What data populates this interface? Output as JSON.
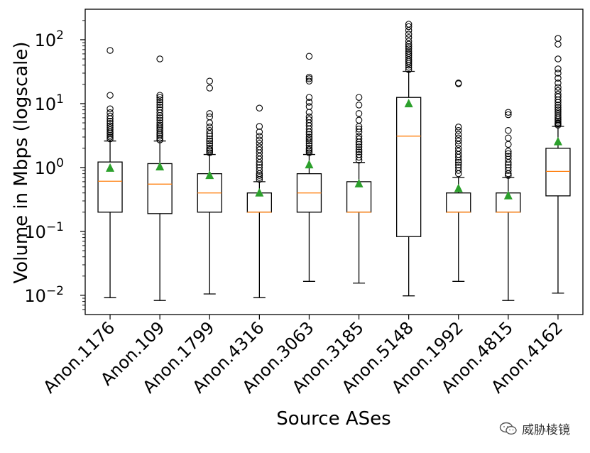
{
  "chart_data": {
    "type": "boxplot",
    "title": "",
    "xlabel": "Source ASes",
    "ylabel": "Volume in Mbps (logscale)",
    "yscale": "log",
    "ylim": [
      0.005,
      300
    ],
    "yticks": [
      {
        "value": 0.01,
        "base": "10",
        "exp": "−2"
      },
      {
        "value": 0.1,
        "base": "10",
        "exp": "−1"
      },
      {
        "value": 1,
        "base": "10",
        "exp": "0"
      },
      {
        "value": 10,
        "base": "10",
        "exp": "1"
      },
      {
        "value": 100,
        "base": "10",
        "exp": "2"
      }
    ],
    "grid": false,
    "colors": {
      "box": "#000000",
      "median": "#ff7f0e",
      "mean": "#2ca02c",
      "flier": "#000000"
    },
    "categories": [
      "Anon.1176",
      "Anon.109",
      "Anon.1799",
      "Anon.4316",
      "Anon.3063",
      "Anon.3185",
      "Anon.5148",
      "Anon.1992",
      "Anon.4815",
      "Anon.4162"
    ],
    "boxes": [
      {
        "whislo": 0.0092,
        "q1": 0.2,
        "med": 0.61,
        "q3": 1.22,
        "whishi": 2.6,
        "mean": 1.0,
        "fliers": [
          2.8,
          3.0,
          3.2,
          3.4,
          3.6,
          3.9,
          4.2,
          4.5,
          4.9,
          5.3,
          5.8,
          6.4,
          7.2,
          8.3,
          13.5,
          68
        ]
      },
      {
        "whislo": 0.0083,
        "q1": 0.19,
        "med": 0.55,
        "q3": 1.15,
        "whishi": 2.6,
        "mean": 1.05,
        "fliers": [
          2.7,
          2.9,
          3.1,
          3.3,
          3.5,
          3.8,
          4.0,
          4.3,
          4.6,
          5.0,
          5.5,
          6.0,
          6.5,
          7.2,
          8.0,
          8.8,
          9.6,
          10.5,
          11.5,
          12.5,
          13.5,
          50
        ]
      },
      {
        "whislo": 0.0105,
        "q1": 0.2,
        "med": 0.4,
        "q3": 0.8,
        "whishi": 1.6,
        "mean": 0.77,
        "fliers": [
          1.7,
          1.8,
          1.9,
          2.0,
          2.2,
          2.4,
          2.6,
          2.8,
          3.1,
          3.4,
          3.8,
          4.3,
          5.0,
          6.2,
          7.0,
          17.5,
          22.5
        ]
      },
      {
        "whislo": 0.0092,
        "q1": 0.2,
        "med": 0.2,
        "q3": 0.4,
        "whishi": 0.6,
        "mean": 0.41,
        "fliers": [
          0.65,
          0.7,
          0.75,
          0.8,
          0.9,
          1.0,
          1.1,
          1.2,
          1.35,
          1.5,
          1.7,
          1.9,
          2.1,
          2.4,
          2.7,
          3.1,
          3.6,
          4.4,
          8.5
        ]
      },
      {
        "whislo": 0.0165,
        "q1": 0.2,
        "med": 0.4,
        "q3": 0.8,
        "whishi": 1.6,
        "mean": 1.13,
        "fliers": [
          1.7,
          1.8,
          1.9,
          2.0,
          2.2,
          2.4,
          2.6,
          2.8,
          3.0,
          3.3,
          3.6,
          4.0,
          4.5,
          5.0,
          5.6,
          6.2,
          7.3,
          9.0,
          10.5,
          12.5,
          22.5,
          24.5,
          26,
          55
        ]
      },
      {
        "whislo": 0.0155,
        "q1": 0.2,
        "med": 0.2,
        "q3": 0.6,
        "whishi": 1.2,
        "mean": 0.57,
        "fliers": [
          1.3,
          1.45,
          1.6,
          1.75,
          1.9,
          2.1,
          2.3,
          2.5,
          2.8,
          3.1,
          3.6,
          4.0,
          4.4,
          5.5,
          7.0,
          9.5,
          12.5
        ]
      },
      {
        "whislo": 0.0098,
        "q1": 0.083,
        "med": 3.1,
        "q3": 12.5,
        "whishi": 32,
        "mean": 10.2,
        "fliers": [
          34,
          37,
          40,
          43,
          46,
          49,
          53,
          57,
          61,
          66,
          72,
          78,
          85,
          95,
          108,
          122,
          140,
          160,
          175
        ]
      },
      {
        "whislo": 0.0165,
        "q1": 0.2,
        "med": 0.2,
        "q3": 0.4,
        "whishi": 0.7,
        "mean": 0.48,
        "fliers": [
          0.8,
          0.9,
          1.0,
          1.1,
          1.2,
          1.3,
          1.45,
          1.6,
          1.8,
          2.0,
          2.3,
          2.6,
          2.9,
          3.3,
          3.8,
          4.3,
          20.5,
          21
        ]
      },
      {
        "whislo": 0.0083,
        "q1": 0.2,
        "med": 0.2,
        "q3": 0.4,
        "whishi": 0.7,
        "mean": 0.37,
        "fliers": [
          0.75,
          0.8,
          0.9,
          1.0,
          1.1,
          1.2,
          1.35,
          1.5,
          1.65,
          1.8,
          2.3,
          2.9,
          3.8,
          6.7,
          7.3
        ]
      },
      {
        "whislo": 0.0108,
        "q1": 0.36,
        "med": 0.87,
        "q3": 2.0,
        "whishi": 4.4,
        "mean": 2.6,
        "fliers": [
          4.6,
          4.8,
          5.0,
          5.3,
          5.6,
          6.0,
          6.4,
          6.9,
          7.4,
          8.0,
          8.7,
          9.5,
          10.5,
          11.5,
          12.8,
          14,
          16,
          18,
          21,
          25,
          30,
          35,
          50,
          85,
          105
        ]
      }
    ]
  },
  "watermark": {
    "text": "威胁棱镜",
    "icon": "wechat-icon"
  }
}
